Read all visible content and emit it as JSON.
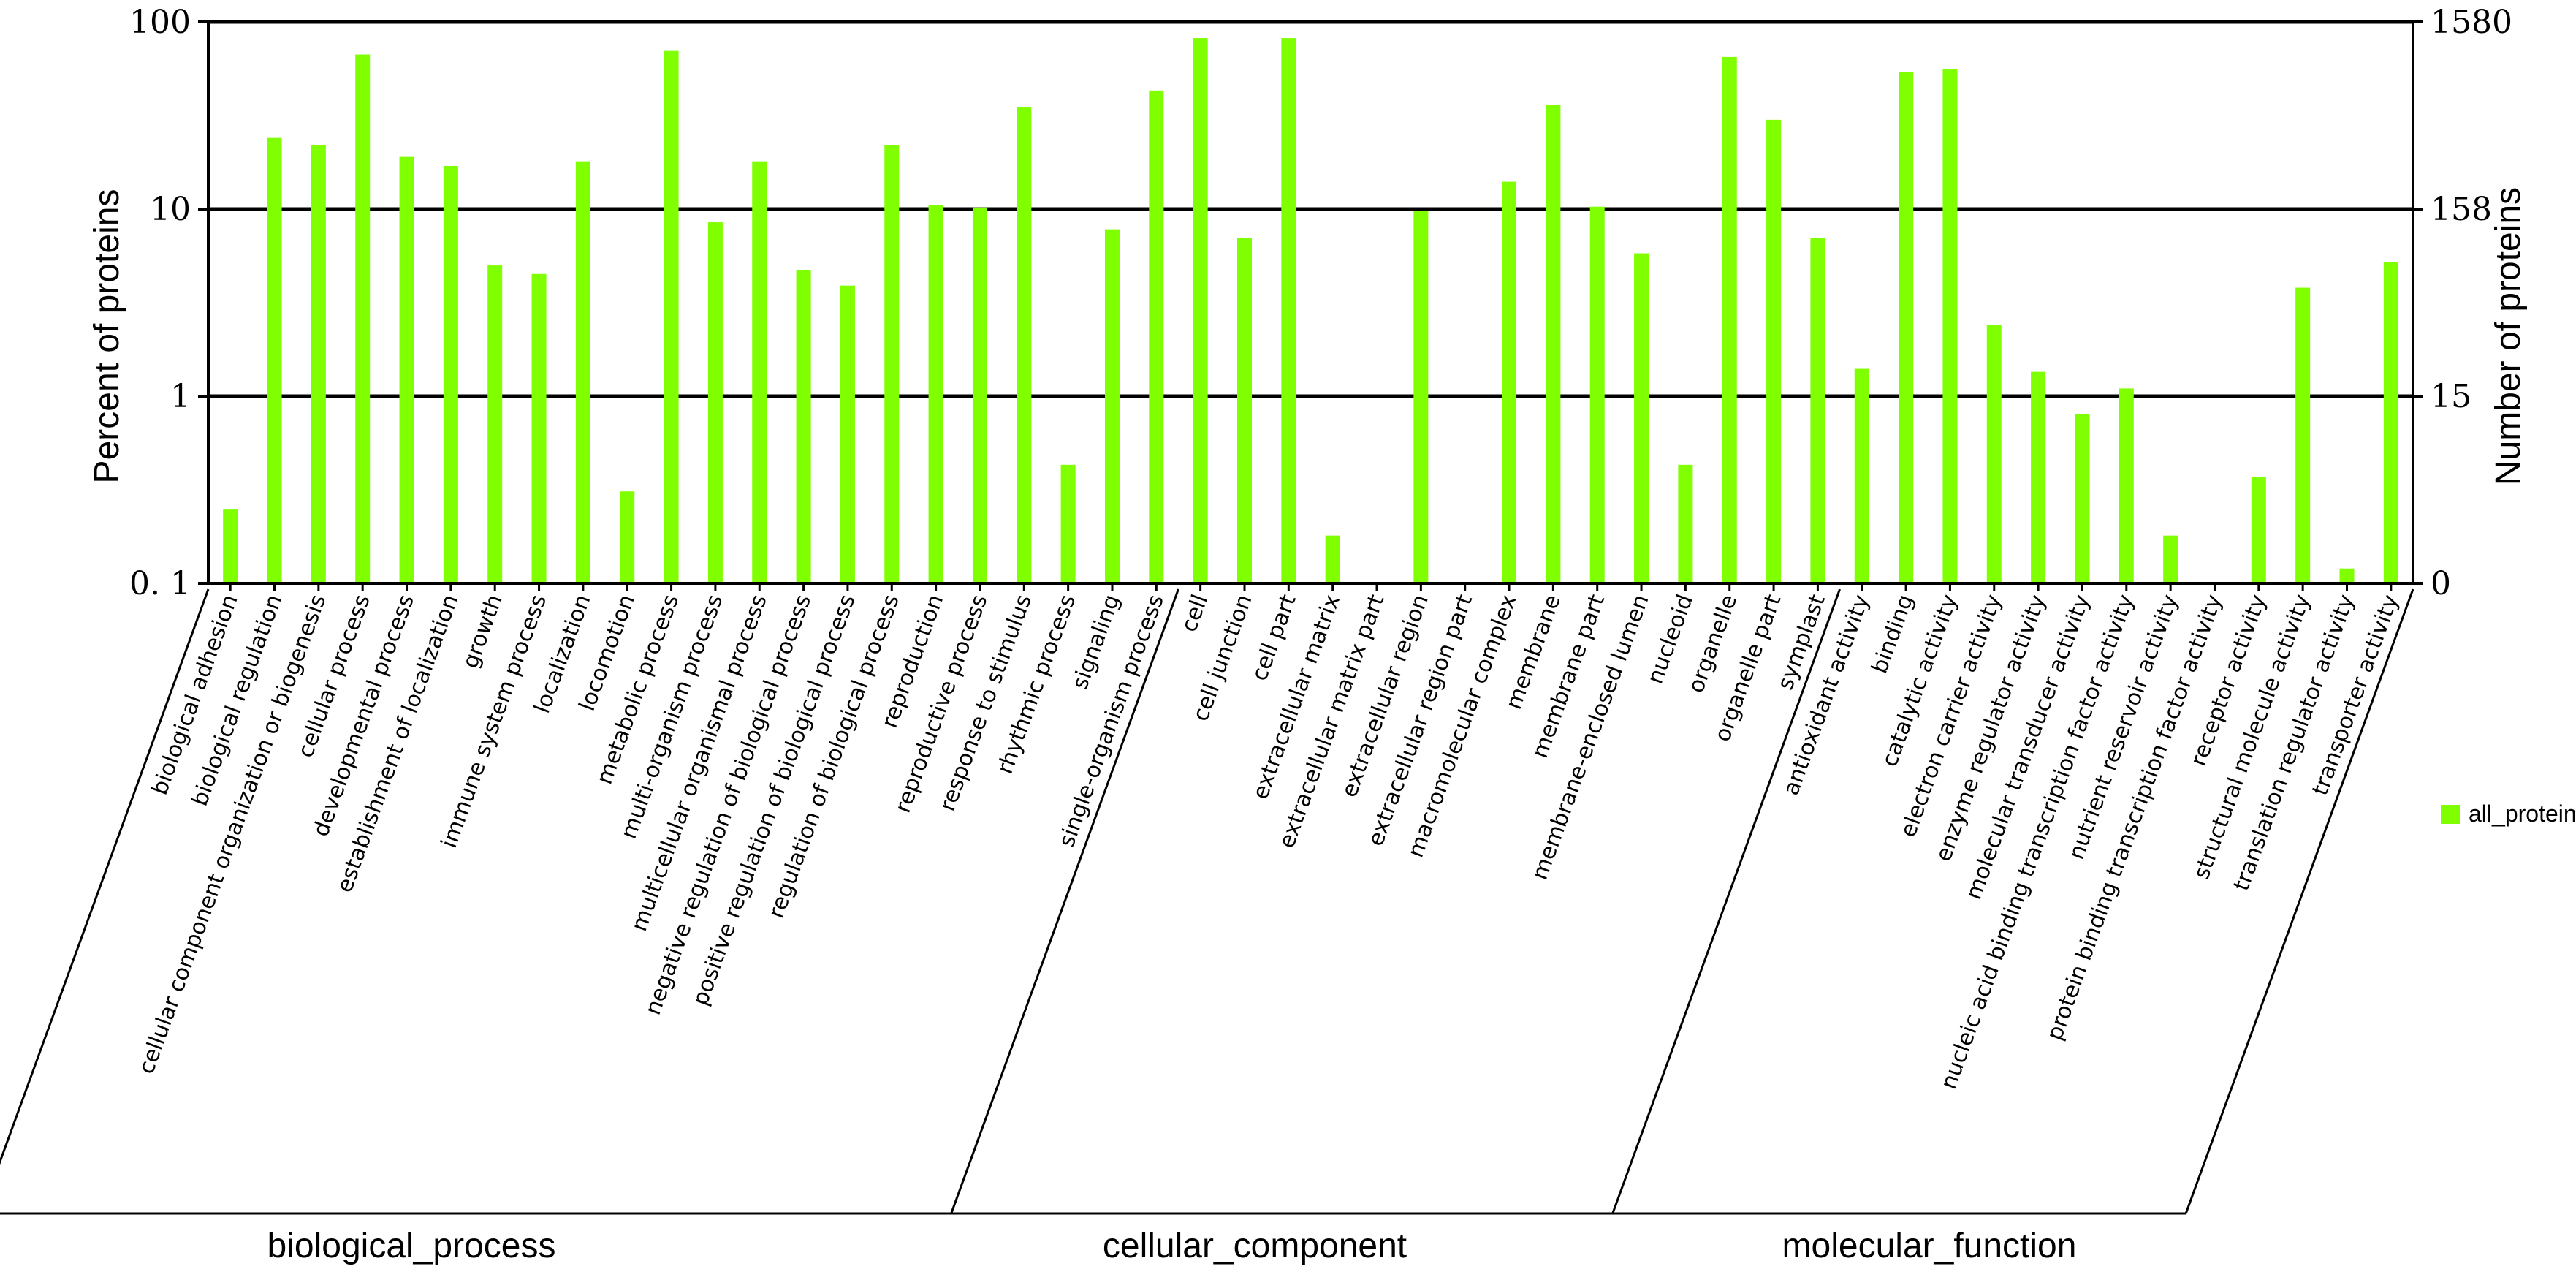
{
  "chart_data": {
    "type": "bar",
    "y_scale": "log",
    "ylim": [
      0.1,
      100
    ],
    "ylabel": "Percent of proteins",
    "y2label": "Number of proteins",
    "y_ticks": [
      "0. 1",
      "1",
      "10",
      "100"
    ],
    "y2_ticks": [
      "0",
      "15",
      "158",
      "1580"
    ],
    "gridlines": "major y",
    "legend": {
      "position": "right",
      "entries": [
        "all_protein"
      ]
    },
    "series": [
      {
        "name": "all_protein",
        "color": "#7FFF00",
        "values": [
          0.25,
          24,
          22,
          67,
          19,
          17,
          5,
          4.5,
          18,
          0.31,
          70,
          8.5,
          18,
          4.7,
          3.9,
          22,
          10.5,
          10.2,
          35,
          0.43,
          7.8,
          43,
          82,
          7,
          82,
          0.18,
          null,
          9.8,
          null,
          14,
          36,
          10.3,
          5.8,
          0.43,
          65,
          30,
          7,
          1.4,
          54,
          56,
          2.4,
          1.35,
          0.8,
          1.1,
          0.18,
          null,
          0.37,
          3.8,
          0.12,
          5.2
        ]
      }
    ],
    "categories": [
      "biological adhesion",
      "biological regulation",
      "cellular component organization or biogenesis",
      "cellular process",
      "developmental process",
      "establishment of localization",
      "growth",
      "immune system process",
      "localization",
      "locomotion",
      "metabolic process",
      "multi-organism process",
      "multicellular organismal process",
      "negative regulation of biological process",
      "positive regulation of biological process",
      "regulation of biological process",
      "reproduction",
      "reproductive process",
      "response to stimulus",
      "rhythmic process",
      "signaling",
      "single-organism process",
      "cell",
      "cell junction",
      "cell part",
      "extracellular matrix",
      "extracellular matrix part",
      "extracellular region",
      "extracellular region part",
      "macromolecular complex",
      "membrane",
      "membrane part",
      "membrane-enclosed lumen",
      "nucleoid",
      "organelle",
      "organelle part",
      "symplast",
      "antioxidant activity",
      "binding",
      "catalytic activity",
      "electron carrier activity",
      "enzyme regulator activity",
      "molecular transducer activity",
      "nucleic acid binding transcription factor activity",
      "nutrient reservoir activity",
      "protein binding transcription factor activity",
      "receptor activity",
      "structural molecule activity",
      "translation regulator activity",
      "transporter activity"
    ],
    "groups": [
      {
        "name": "biological_process",
        "count": 22
      },
      {
        "name": "cellular_component",
        "count": 15
      },
      {
        "name": "molecular_function",
        "count": 13
      }
    ]
  }
}
